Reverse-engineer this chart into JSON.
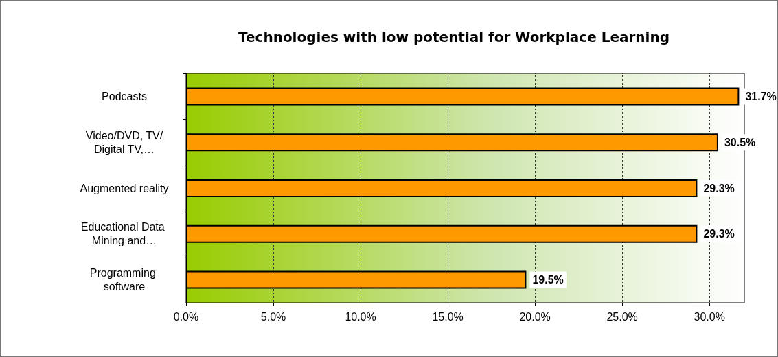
{
  "chart_data": {
    "type": "bar",
    "orientation": "horizontal",
    "title": "Technologies with low potential for Workplace Learning",
    "categories": [
      "Podcasts",
      "Video/DVD, TV/Digital TV,…",
      "Augmented reality",
      "Educational Data Mining and…",
      "Programming software"
    ],
    "values": [
      31.7,
      30.5,
      29.3,
      29.3,
      19.5
    ],
    "value_labels": [
      "31.7%",
      "30.5%",
      "29.3%",
      "29.3%",
      "19.5%"
    ],
    "color": "#ff9900",
    "xlim": [
      0,
      32
    ],
    "xticks": [
      {
        "value": 0,
        "label": "0.0%"
      },
      {
        "value": 5,
        "label": "5.0%"
      },
      {
        "value": 10,
        "label": "10.0%"
      },
      {
        "value": 15,
        "label": "15.0%"
      },
      {
        "value": 20,
        "label": "20.0%"
      },
      {
        "value": 25,
        "label": "25.0%"
      },
      {
        "value": 30,
        "label": "30.0%"
      }
    ],
    "grid": "x"
  }
}
